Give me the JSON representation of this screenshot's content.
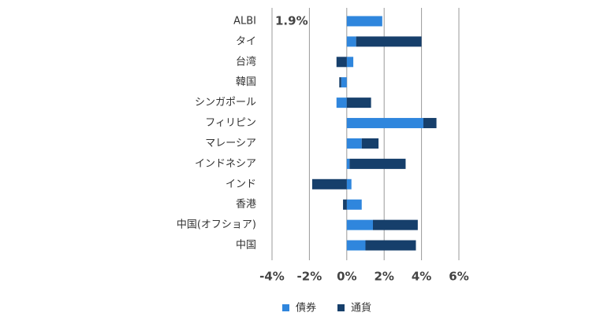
{
  "chart_data": {
    "type": "bar",
    "orientation": "horizontal",
    "stacked": true,
    "categories": [
      "ALBI",
      "タイ",
      "台湾",
      "韓国",
      "シンガポール",
      "フィリピン",
      "マレーシア",
      "インドネシア",
      "インド",
      "香港",
      "中国(オフショア)",
      "中国"
    ],
    "series": [
      {
        "name": "債券",
        "color": "#2f86dd",
        "values": [
          1.9,
          0.5,
          0.35,
          -0.3,
          -0.55,
          4.1,
          0.8,
          0.15,
          0.25,
          0.8,
          1.4,
          1.0
        ],
        "value_labels": [
          "1.9%",
          null,
          null,
          null,
          null,
          null,
          null,
          null,
          null,
          null,
          null,
          null
        ]
      },
      {
        "name": "通貨",
        "color": "#163f6b",
        "values": [
          0,
          3.5,
          -0.55,
          -0.1,
          1.3,
          0.7,
          0.9,
          3.0,
          -1.85,
          -0.2,
          2.4,
          2.7
        ]
      }
    ],
    "xlim": [
      -4,
      6
    ],
    "xticks": [
      {
        "value": -4,
        "label": "-4%"
      },
      {
        "value": -2,
        "label": "-2%"
      },
      {
        "value": 0,
        "label": "0%"
      },
      {
        "value": 2,
        "label": "2%"
      },
      {
        "value": 4,
        "label": "4%"
      },
      {
        "value": 6,
        "label": "6%"
      }
    ],
    "grid": true,
    "legend": "bottom"
  }
}
